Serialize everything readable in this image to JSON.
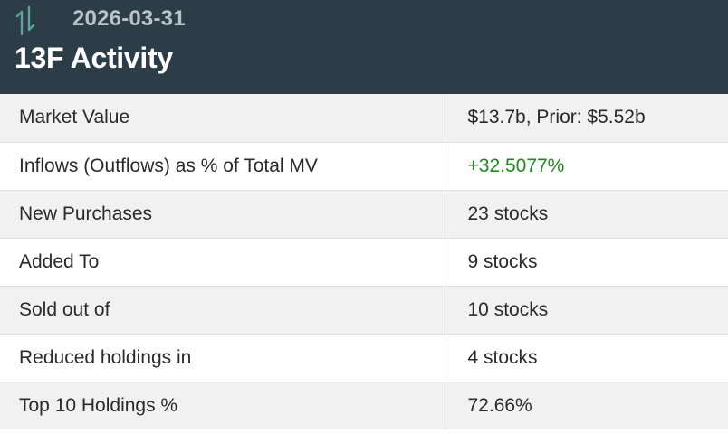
{
  "header": {
    "icon": "up-down-arrows-icon",
    "date": "2026-03-31",
    "title": "13F Activity"
  },
  "colors": {
    "header_bg": "#2d3d48",
    "icon": "#5aa595",
    "positive": "#1e8a1e"
  },
  "rows": [
    {
      "label": "Market Value",
      "value": "$13.7b, Prior: $5.52b"
    },
    {
      "label": "Inflows (Outflows) as % of Total MV",
      "value": "+32.5077%"
    },
    {
      "label": "New Purchases",
      "value": "23 stocks"
    },
    {
      "label": "Added To",
      "value": "9 stocks"
    },
    {
      "label": "Sold out of",
      "value": "10 stocks"
    },
    {
      "label": "Reduced holdings in",
      "value": "4 stocks"
    },
    {
      "label": "Top 10 Holdings %",
      "value": "72.66%"
    }
  ]
}
